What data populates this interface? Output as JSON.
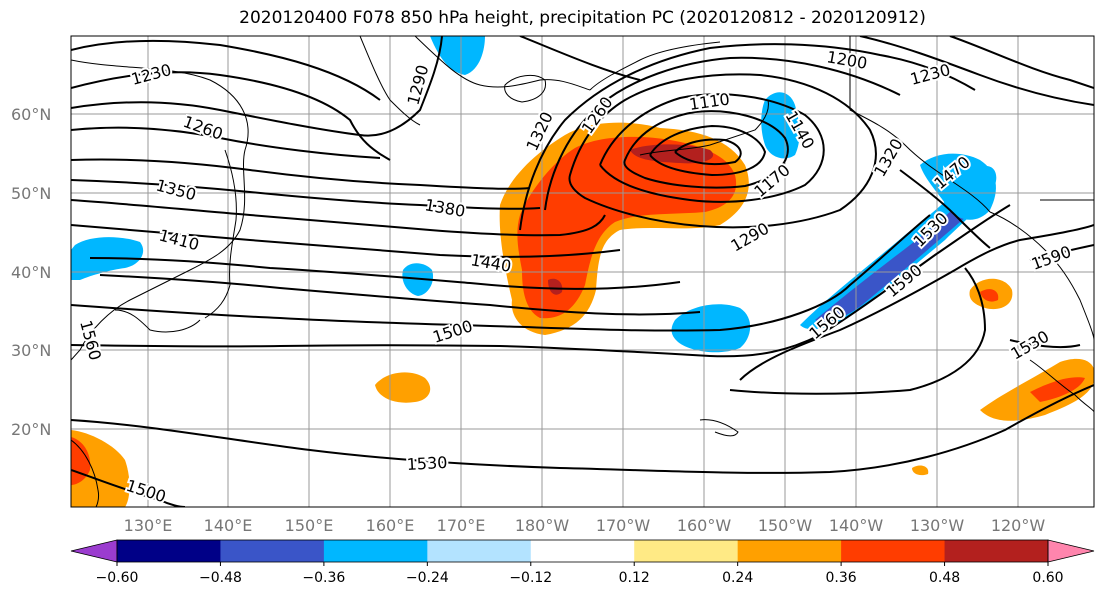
{
  "title": "2020120400 F078 850 hPa height, precipitation PC (2020120812 - 2020120912)",
  "lat_labels": [
    "60°N",
    "50°N",
    "40°N",
    "30°N",
    "20°N"
  ],
  "lon_labels": [
    "130°E",
    "140°E",
    "150°E",
    "160°E",
    "170°E",
    "180°W",
    "170°W",
    "160°W",
    "150°W",
    "140°W",
    "130°W",
    "120°W"
  ],
  "contour_labels": [
    "1230",
    "1260",
    "1290",
    "1350",
    "1410",
    "1380",
    "1440",
    "1500",
    "1560",
    "1530",
    "1500",
    "1320",
    "1260",
    "1110",
    "1200",
    "1230",
    "1140",
    "1170",
    "1290",
    "1320",
    "1530",
    "1560",
    "1590",
    "1590",
    "1530",
    "1470"
  ],
  "colorbar": {
    "ticks": [
      "−0.60",
      "−0.48",
      "−0.36",
      "−0.24",
      "−0.12",
      "0.12",
      "0.24",
      "0.36",
      "0.48",
      "0.60"
    ],
    "colors": [
      "#9b3ccf",
      "#000087",
      "#3a55c8",
      "#00b7ff",
      "#b3e3ff",
      "#ffffff",
      "#ffea85",
      "#ffa000",
      "#ff3d00",
      "#b3201e",
      "#ff85ad"
    ]
  }
}
